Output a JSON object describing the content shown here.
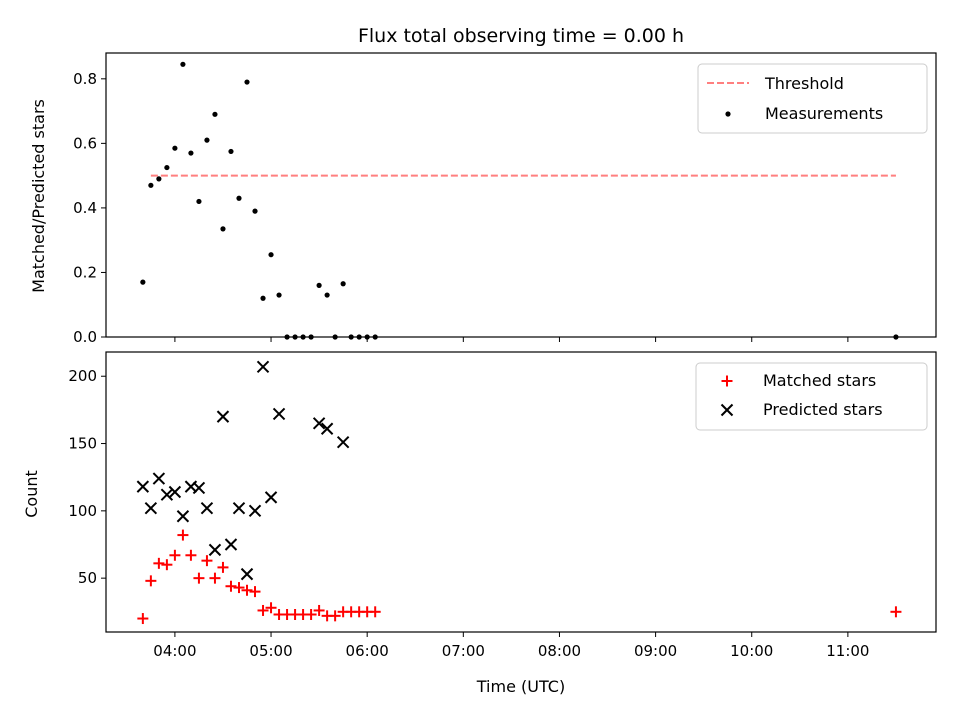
{
  "chart_data": [
    {
      "type": "scatter",
      "title": "Flux total observing time = 0.00 h",
      "xlabel": "",
      "ylabel": "Matched/Predicted stars",
      "ylim": [
        0,
        0.88
      ],
      "yticks": [
        0.0,
        0.2,
        0.4,
        0.6,
        0.8
      ],
      "ytick_labels": [
        "0.0",
        "0.2",
        "0.4",
        "0.6",
        "0.8"
      ],
      "legend_position": "top-right",
      "threshold": {
        "name": "Threshold",
        "value": 0.5,
        "x_start": "03:45",
        "x_end": "11:30",
        "color": "#ff7f7f"
      },
      "series": [
        {
          "name": "Measurements",
          "color": "#000000",
          "marker": "dot",
          "points": [
            [
              "03:40",
              0.17
            ],
            [
              "03:45",
              0.47
            ],
            [
              "03:50",
              0.49
            ],
            [
              "03:55",
              0.525
            ],
            [
              "04:00",
              0.585
            ],
            [
              "04:05",
              0.845
            ],
            [
              "04:10",
              0.57
            ],
            [
              "04:15",
              0.42
            ],
            [
              "04:20",
              0.61
            ],
            [
              "04:25",
              0.69
            ],
            [
              "04:30",
              0.335
            ],
            [
              "04:35",
              0.575
            ],
            [
              "04:40",
              0.43
            ],
            [
              "04:45",
              0.79
            ],
            [
              "04:50",
              0.39
            ],
            [
              "04:55",
              0.12
            ],
            [
              "05:00",
              0.255
            ],
            [
              "05:05",
              0.13
            ],
            [
              "05:10",
              0.0
            ],
            [
              "05:15",
              0.0
            ],
            [
              "05:20",
              0.0
            ],
            [
              "05:25",
              0.0
            ],
            [
              "05:30",
              0.16
            ],
            [
              "05:35",
              0.13
            ],
            [
              "05:40",
              0.0
            ],
            [
              "05:45",
              0.165
            ],
            [
              "05:50",
              0.0
            ],
            [
              "05:55",
              0.0
            ],
            [
              "06:00",
              0.0
            ],
            [
              "06:05",
              0.0
            ],
            [
              "11:30",
              0.0
            ]
          ]
        }
      ]
    },
    {
      "type": "scatter",
      "title": "",
      "xlabel": "Time (UTC)",
      "ylabel": "Count",
      "ylim": [
        10,
        218
      ],
      "yticks": [
        50,
        100,
        150,
        200
      ],
      "ytick_labels": [
        "50",
        "100",
        "150",
        "200"
      ],
      "legend_position": "top-right",
      "series": [
        {
          "name": "Matched stars",
          "color": "#ff0000",
          "marker": "plus",
          "points": [
            [
              "03:40",
              20
            ],
            [
              "03:45",
              48
            ],
            [
              "03:50",
              61
            ],
            [
              "03:55",
              60
            ],
            [
              "04:00",
              67
            ],
            [
              "04:05",
              82
            ],
            [
              "04:10",
              67
            ],
            [
              "04:15",
              50
            ],
            [
              "04:20",
              63
            ],
            [
              "04:25",
              50
            ],
            [
              "04:30",
              58
            ],
            [
              "04:35",
              44
            ],
            [
              "04:40",
              43
            ],
            [
              "04:45",
              41
            ],
            [
              "04:50",
              40
            ],
            [
              "04:55",
              26
            ],
            [
              "05:00",
              28
            ],
            [
              "05:05",
              23
            ],
            [
              "05:10",
              23
            ],
            [
              "05:15",
              23
            ],
            [
              "05:20",
              23
            ],
            [
              "05:25",
              23
            ],
            [
              "05:30",
              26
            ],
            [
              "05:35",
              22
            ],
            [
              "05:40",
              22
            ],
            [
              "05:45",
              25
            ],
            [
              "05:50",
              25
            ],
            [
              "05:55",
              25
            ],
            [
              "06:00",
              25
            ],
            [
              "06:05",
              25
            ],
            [
              "11:30",
              25
            ]
          ]
        },
        {
          "name": "Predicted stars",
          "color": "#000000",
          "marker": "x",
          "points": [
            [
              "03:40",
              118
            ],
            [
              "03:45",
              102
            ],
            [
              "03:50",
              124
            ],
            [
              "03:55",
              112
            ],
            [
              "04:00",
              114
            ],
            [
              "04:05",
              96
            ],
            [
              "04:10",
              118
            ],
            [
              "04:15",
              117
            ],
            [
              "04:20",
              102
            ],
            [
              "04:25",
              71
            ],
            [
              "04:30",
              170
            ],
            [
              "04:35",
              75
            ],
            [
              "04:40",
              102
            ],
            [
              "04:45",
              53
            ],
            [
              "04:50",
              100
            ],
            [
              "04:55",
              207
            ],
            [
              "05:00",
              110
            ],
            [
              "05:05",
              172
            ],
            [
              "05:30",
              165
            ],
            [
              "05:35",
              161
            ],
            [
              "05:45",
              151
            ]
          ]
        }
      ],
      "xlim": [
        "03:17",
        "11:55"
      ],
      "xticks": [
        "04:00",
        "05:00",
        "06:00",
        "07:00",
        "08:00",
        "09:00",
        "10:00",
        "11:00"
      ]
    }
  ]
}
